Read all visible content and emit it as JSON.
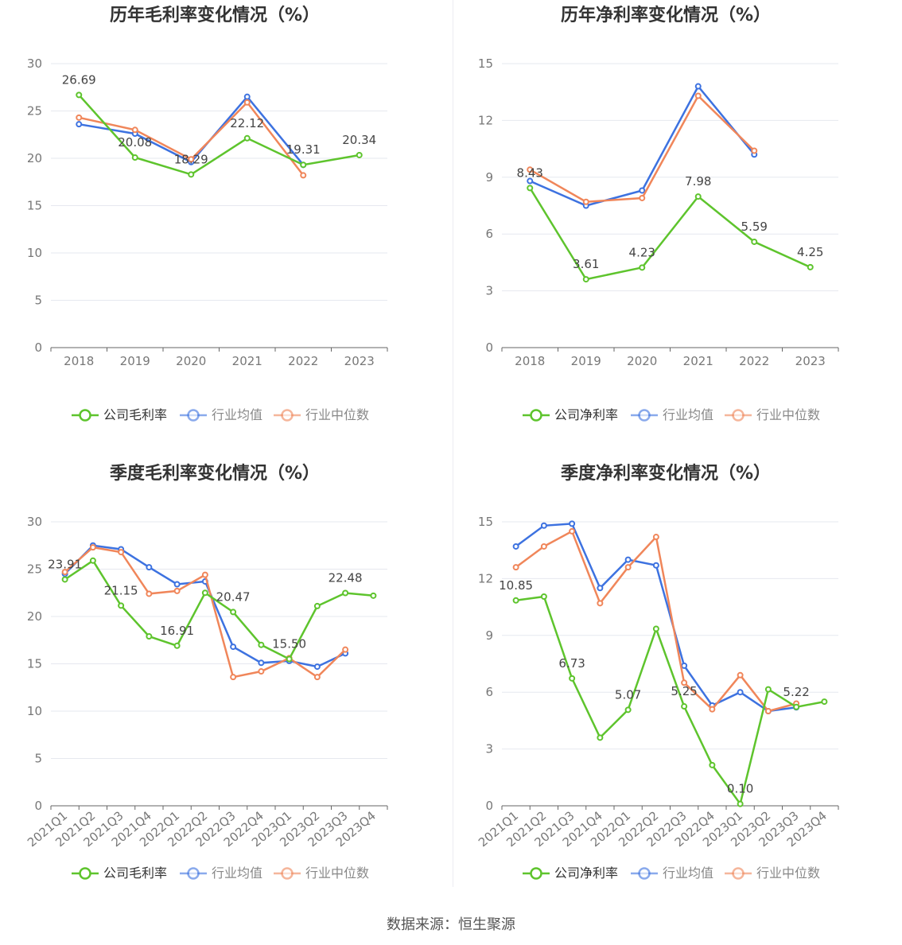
{
  "source": "数据来源：恒生聚源",
  "colors": {
    "company": "#5ec42d",
    "avg": "#3d72e0",
    "median": "#f0865a"
  },
  "legend_labels": {
    "avg": "行业均值",
    "median": "行业中位数"
  },
  "chart_data": [
    {
      "type": "line",
      "title": "历年毛利率变化情况（%）",
      "legend": [
        "公司毛利率",
        "行业均值",
        "行业中位数"
      ],
      "categories": [
        "2018",
        "2019",
        "2020",
        "2021",
        "2022",
        "2023"
      ],
      "ylim": [
        0,
        30
      ],
      "yticks": [
        0,
        5,
        10,
        15,
        20,
        25,
        30
      ],
      "rotate_x": false,
      "series": [
        {
          "name": "公司毛利率",
          "values": [
            26.69,
            20.08,
            18.29,
            22.12,
            19.31,
            20.34
          ],
          "labels": [
            "26.69",
            "20.08",
            "18.29",
            "22.12",
            "19.31",
            "20.34"
          ]
        },
        {
          "name": "行业均值",
          "values": [
            23.6,
            22.6,
            19.6,
            26.5,
            19.3,
            null
          ]
        },
        {
          "name": "行业中位数",
          "values": [
            24.3,
            23.0,
            19.9,
            25.9,
            18.2,
            null
          ]
        }
      ]
    },
    {
      "type": "line",
      "title": "历年净利率变化情况（%）",
      "legend": [
        "公司净利率",
        "行业均值",
        "行业中位数"
      ],
      "categories": [
        "2018",
        "2019",
        "2020",
        "2021",
        "2022",
        "2023"
      ],
      "ylim": [
        0,
        15
      ],
      "yticks": [
        0,
        3,
        6,
        9,
        12,
        15
      ],
      "rotate_x": false,
      "series": [
        {
          "name": "公司净利率",
          "values": [
            8.43,
            3.61,
            4.23,
            7.98,
            5.59,
            4.25
          ],
          "labels": [
            "8.43",
            "3.61",
            "4.23",
            "7.98",
            "5.59",
            "4.25"
          ]
        },
        {
          "name": "行业均值",
          "values": [
            8.8,
            7.5,
            8.3,
            13.8,
            10.2,
            null
          ]
        },
        {
          "name": "行业中位数",
          "values": [
            9.4,
            7.7,
            7.9,
            13.3,
            10.4,
            null
          ]
        }
      ]
    },
    {
      "type": "line",
      "title": "季度毛利率变化情况（%）",
      "legend": [
        "公司毛利率",
        "行业均值",
        "行业中位数"
      ],
      "categories": [
        "2021Q1",
        "2021Q2",
        "2021Q3",
        "2021Q4",
        "2022Q1",
        "2022Q2",
        "2022Q3",
        "2022Q4",
        "2023Q1",
        "2023Q2",
        "2023Q3",
        "2023Q4"
      ],
      "ylim": [
        0,
        30
      ],
      "yticks": [
        0,
        5,
        10,
        15,
        20,
        25,
        30
      ],
      "rotate_x": true,
      "series": [
        {
          "name": "公司毛利率",
          "values": [
            23.91,
            25.9,
            21.15,
            17.9,
            16.91,
            22.5,
            20.47,
            17.0,
            15.5,
            21.1,
            22.48,
            22.2
          ],
          "labels": [
            "23.91",
            "",
            "21.15",
            "",
            "16.91",
            "",
            "20.47",
            "",
            "15.50",
            "",
            "22.48",
            ""
          ]
        },
        {
          "name": "行业均值",
          "values": [
            24.5,
            27.5,
            27.1,
            25.2,
            23.4,
            23.7,
            16.8,
            15.1,
            15.3,
            14.7,
            16.1,
            null
          ]
        },
        {
          "name": "行业中位数",
          "values": [
            24.7,
            27.3,
            26.8,
            22.4,
            22.7,
            24.4,
            13.6,
            14.2,
            15.6,
            13.6,
            16.5,
            null
          ]
        }
      ]
    },
    {
      "type": "line",
      "title": "季度净利率变化情况（%）",
      "legend": [
        "公司净利率",
        "行业均值",
        "行业中位数"
      ],
      "categories": [
        "2021Q1",
        "2021Q2",
        "2021Q3",
        "2021Q4",
        "2022Q1",
        "2022Q2",
        "2022Q3",
        "2022Q4",
        "2023Q1",
        "2023Q2",
        "2023Q3",
        "2023Q4"
      ],
      "ylim": [
        0,
        15
      ],
      "yticks": [
        0,
        3,
        6,
        9,
        12,
        15
      ],
      "rotate_x": true,
      "series": [
        {
          "name": "公司净利率",
          "values": [
            10.85,
            11.05,
            6.73,
            3.6,
            5.07,
            9.35,
            5.25,
            2.15,
            0.1,
            6.15,
            5.22,
            5.5
          ],
          "labels": [
            "10.85",
            "",
            "6.73",
            "",
            "5.07",
            "",
            "5.25",
            "",
            "0.10",
            "",
            "5.22",
            ""
          ]
        },
        {
          "name": "行业均值",
          "values": [
            13.7,
            14.8,
            14.9,
            11.5,
            13.0,
            12.7,
            7.4,
            5.3,
            6.0,
            5.0,
            5.2,
            null
          ]
        },
        {
          "name": "行业中位数",
          "values": [
            12.6,
            13.7,
            14.5,
            10.7,
            12.6,
            14.2,
            6.5,
            5.1,
            6.9,
            5.0,
            5.4,
            null
          ]
        }
      ]
    }
  ]
}
